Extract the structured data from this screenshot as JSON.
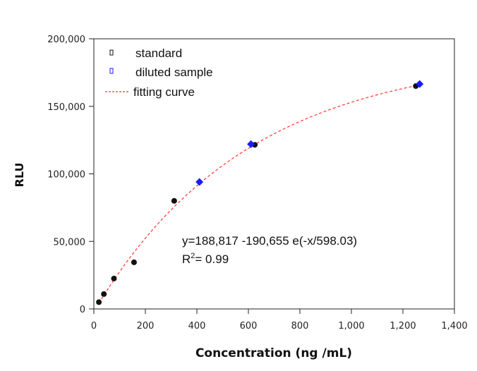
{
  "chart_data": {
    "type": "scatter",
    "xlabel": "Concentration (ng /mL)",
    "ylabel": "RLU",
    "xlim": [
      0,
      1400
    ],
    "ylim": [
      0,
      200000
    ],
    "x_ticks": [
      0,
      200,
      400,
      600,
      800,
      1000,
      1200,
      1400
    ],
    "x_tick_labels": [
      "0",
      "200",
      "400",
      "600",
      "800",
      "1,000",
      "1,200",
      "1,400"
    ],
    "y_ticks": [
      0,
      50000,
      100000,
      150000,
      200000
    ],
    "y_tick_labels": [
      "0",
      "50,000",
      "100,000",
      "150,000",
      "200,000"
    ],
    "grid": false,
    "legend_position": "top-left",
    "series": [
      {
        "name": "standard",
        "marker": "circle",
        "color": "#111111",
        "x": [
          19.5,
          39,
          78,
          156,
          312,
          625,
          1250
        ],
        "y": [
          5000,
          11000,
          22500,
          34500,
          80000,
          121500,
          165000
        ]
      },
      {
        "name": "diluted sample",
        "marker": "diamond",
        "color": "#1a1aff",
        "x": [
          410,
          610,
          1265
        ],
        "y": [
          94000,
          122000,
          166500
        ]
      },
      {
        "name": "fitting curve",
        "style": "dashed",
        "color": "#ff3333",
        "equation": {
          "a": 188817,
          "b": 190655,
          "c": 598.03
        },
        "x_range": [
          19,
          1260
        ]
      }
    ],
    "annotations": {
      "equation": "y=188,817 -190,655 e(-x/598.03)",
      "r2_prefix": "R",
      "r2_sup": "2",
      "r2_suffix": "= 0.99"
    }
  }
}
